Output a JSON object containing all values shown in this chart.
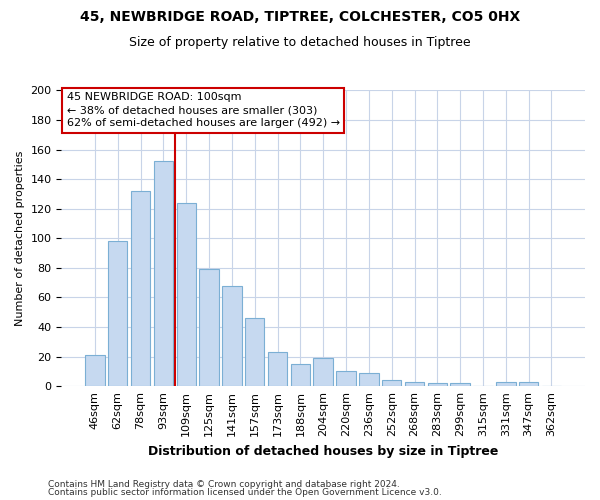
{
  "title_line1": "45, NEWBRIDGE ROAD, TIPTREE, COLCHESTER, CO5 0HX",
  "title_line2": "Size of property relative to detached houses in Tiptree",
  "xlabel": "Distribution of detached houses by size in Tiptree",
  "ylabel": "Number of detached properties",
  "categories": [
    "46sqm",
    "62sqm",
    "78sqm",
    "93sqm",
    "109sqm",
    "125sqm",
    "141sqm",
    "157sqm",
    "173sqm",
    "188sqm",
    "204sqm",
    "220sqm",
    "236sqm",
    "252sqm",
    "268sqm",
    "283sqm",
    "299sqm",
    "315sqm",
    "331sqm",
    "347sqm",
    "362sqm"
  ],
  "values": [
    21,
    98,
    132,
    152,
    124,
    79,
    68,
    46,
    23,
    15,
    19,
    10,
    9,
    4,
    3,
    2,
    2,
    0,
    3,
    3,
    0
  ],
  "bar_color": "#c6d9f0",
  "bar_edge_color": "#7bafd4",
  "annotation_line1": "45 NEWBRIDGE ROAD: 100sqm",
  "annotation_line2": "← 38% of detached houses are smaller (303)",
  "annotation_line3": "62% of semi-detached houses are larger (492) →",
  "annotation_box_color": "white",
  "annotation_box_edge_color": "#cc0000",
  "vline_color": "#cc0000",
  "vline_x": 3.5,
  "ylim": [
    0,
    200
  ],
  "yticks": [
    0,
    20,
    40,
    60,
    80,
    100,
    120,
    140,
    160,
    180,
    200
  ],
  "footer_line1": "Contains HM Land Registry data © Crown copyright and database right 2024.",
  "footer_line2": "Contains public sector information licensed under the Open Government Licence v3.0.",
  "bg_color": "#ffffff",
  "plot_bg_color": "#ffffff",
  "grid_color": "#c8d4e8",
  "title_fontsize": 10,
  "subtitle_fontsize": 9,
  "xlabel_fontsize": 9,
  "ylabel_fontsize": 8,
  "tick_fontsize": 8,
  "xtick_fontsize": 8,
  "annotation_fontsize": 8,
  "footer_fontsize": 6.5
}
